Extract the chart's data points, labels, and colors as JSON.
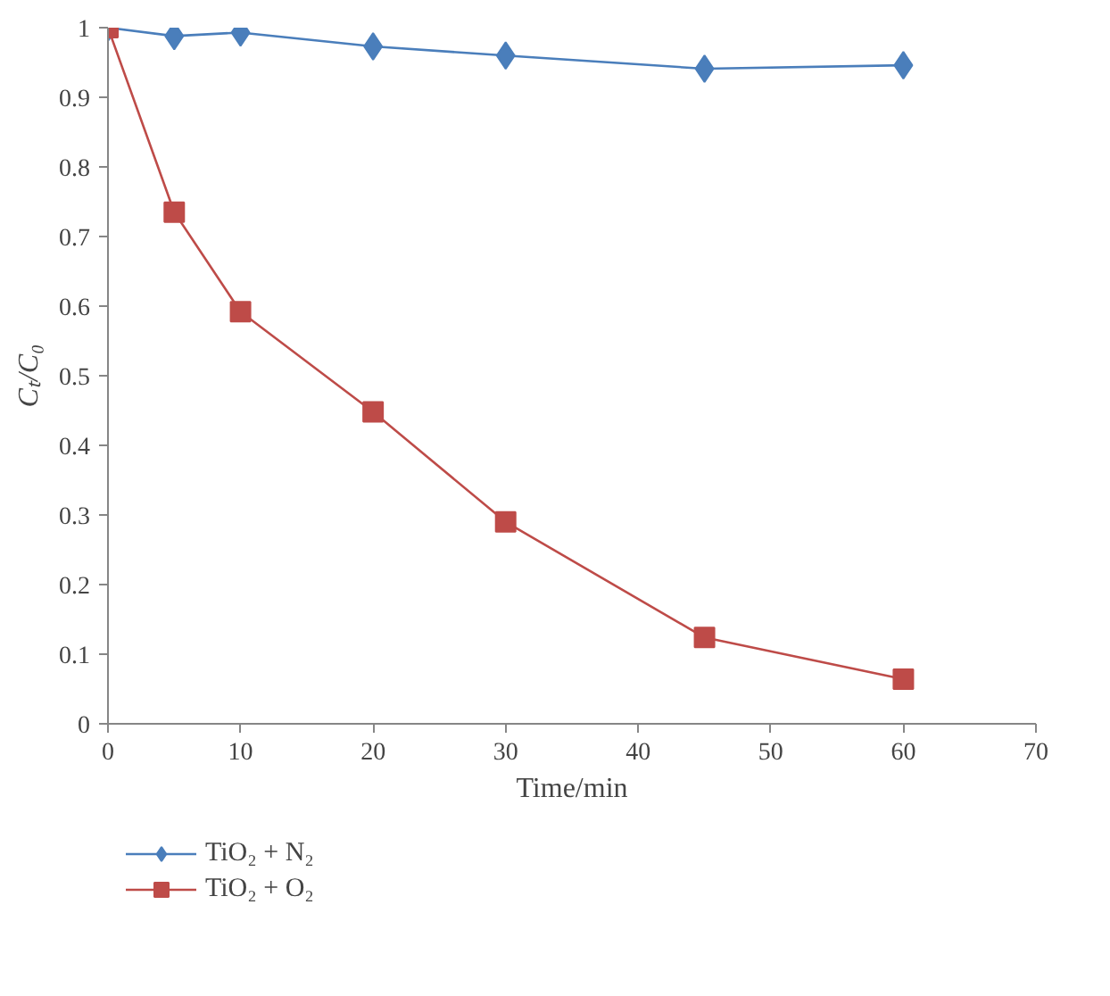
{
  "chart_data": {
    "type": "line",
    "xlabel": "Time/min",
    "ylabel": "Cₜ/C₀",
    "xlim": [
      0,
      70
    ],
    "xticks": [
      0,
      10,
      20,
      30,
      40,
      50,
      60,
      70
    ],
    "ylim": [
      0,
      1
    ],
    "yticks": [
      0,
      0.1,
      0.2,
      0.3,
      0.4,
      0.5,
      0.6,
      0.7,
      0.8,
      0.9,
      1
    ],
    "grid": false,
    "legend": "bottom",
    "line_style": "solid",
    "series": [
      {
        "name": "TiO₂ + N₂",
        "color": "#4a7ebb",
        "marker": "diamond",
        "x": [
          0,
          5,
          10,
          20,
          30,
          45,
          60
        ],
        "values": [
          1,
          0.988,
          0.993,
          0.973,
          0.96,
          0.941,
          0.946
        ]
      },
      {
        "name": "TiO₂ + O₂",
        "color": "#be4b48",
        "marker": "square",
        "x": [
          0,
          5,
          10,
          20,
          30,
          45,
          60
        ],
        "values": [
          1,
          0.735,
          0.592,
          0.448,
          0.29,
          0.124,
          0.064
        ]
      }
    ]
  }
}
